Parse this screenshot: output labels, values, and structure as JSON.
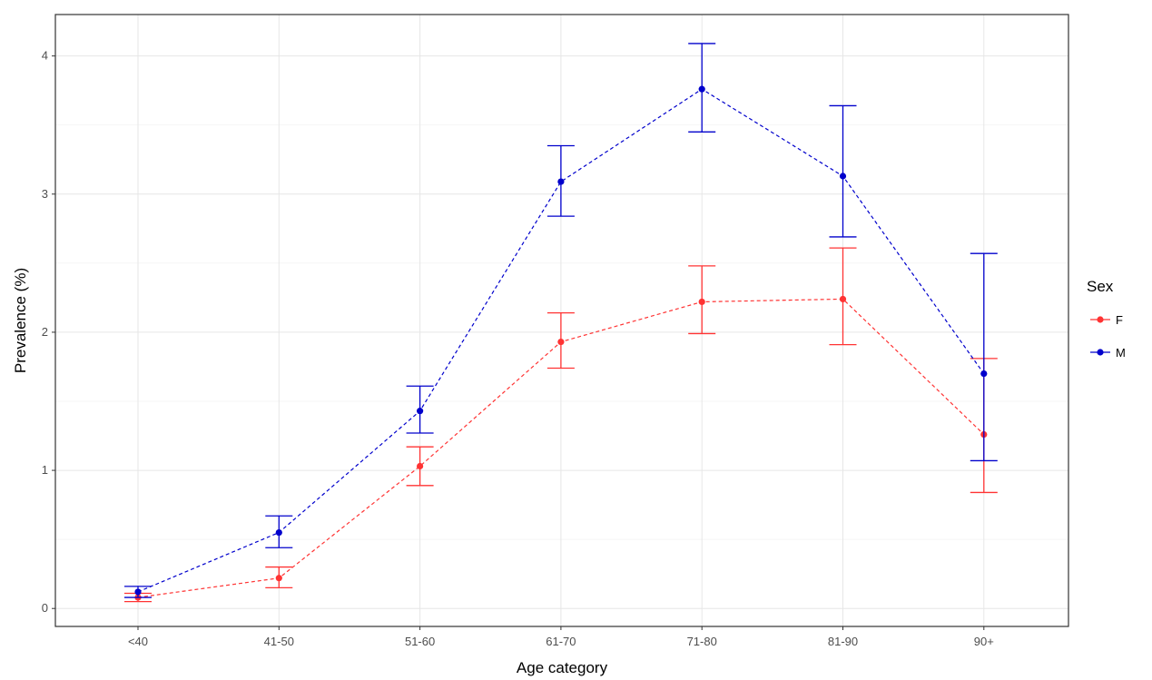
{
  "chart_data": {
    "type": "line",
    "xlabel": "Age category",
    "ylabel": "Prevalence (%)",
    "categories": [
      "<40",
      "41-50",
      "51-60",
      "61-70",
      "71-80",
      "81-90",
      "90+"
    ],
    "ylim": [
      -0.13,
      4.3
    ],
    "y_ticks": [
      0,
      1,
      2,
      3,
      4
    ],
    "grid": true,
    "legend": {
      "title": "Sex",
      "placement": "right"
    },
    "series": [
      {
        "name": "F",
        "color": "#ff3333",
        "line_style": "dashed",
        "values": [
          0.08,
          0.22,
          1.03,
          1.93,
          2.22,
          2.24,
          1.26
        ],
        "lower": [
          0.05,
          0.15,
          0.89,
          1.74,
          1.99,
          1.91,
          0.84
        ],
        "upper": [
          0.11,
          0.3,
          1.17,
          2.14,
          2.48,
          2.61,
          1.81
        ]
      },
      {
        "name": "M",
        "color": "#0000cc",
        "line_style": "dashed",
        "values": [
          0.12,
          0.55,
          1.43,
          3.09,
          3.76,
          3.13,
          1.7
        ],
        "lower": [
          0.08,
          0.44,
          1.27,
          2.84,
          3.45,
          2.69,
          1.07
        ],
        "upper": [
          0.16,
          0.67,
          1.61,
          3.35,
          4.09,
          3.64,
          2.57
        ]
      }
    ]
  }
}
